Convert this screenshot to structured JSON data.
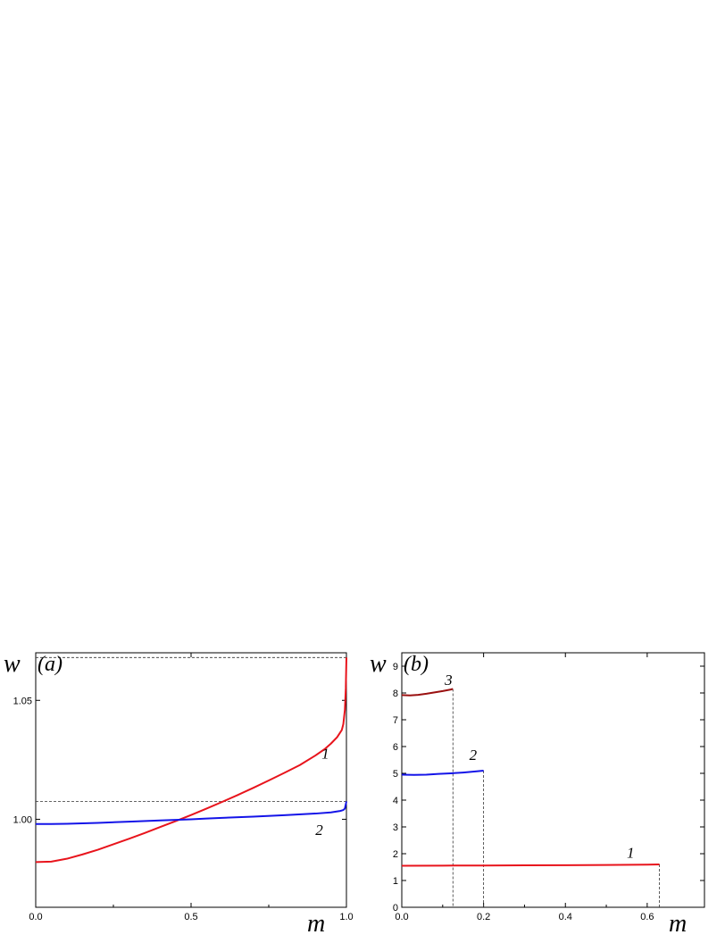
{
  "chart_data": [
    {
      "type": "line",
      "panel_label": "(a)",
      "ylabel": "w",
      "xlabel": "m",
      "xlim": [
        0.0,
        1.0
      ],
      "ylim": [
        0.963,
        1.07
      ],
      "xticks": [
        0.0,
        0.5,
        1.0
      ],
      "xtick_labels": [
        "0.0",
        "0.5",
        "1.0"
      ],
      "yticks": [
        1.0,
        1.05
      ],
      "ytick_labels": [
        "1.00",
        "1.05"
      ],
      "grid": false,
      "series": [
        {
          "name": "1",
          "color": "#e8141c",
          "x": [
            0.0,
            0.05,
            0.1,
            0.15,
            0.2,
            0.25,
            0.3,
            0.35,
            0.4,
            0.45,
            0.5,
            0.55,
            0.6,
            0.65,
            0.7,
            0.75,
            0.8,
            0.85,
            0.9,
            0.93,
            0.95,
            0.97,
            0.985,
            0.99,
            0.995,
            0.998,
            1.0
          ],
          "y": [
            0.982,
            0.9822,
            0.9834,
            0.9852,
            0.9872,
            0.9895,
            0.9918,
            0.9942,
            0.9967,
            0.9992,
            1.0018,
            1.0045,
            1.0073,
            1.0102,
            1.0132,
            1.0163,
            1.0195,
            1.0228,
            1.0268,
            1.0295,
            1.0318,
            1.0345,
            1.0375,
            1.04,
            1.046,
            1.055,
            1.068
          ]
        },
        {
          "name": "2",
          "color": "#1414e8",
          "x": [
            0.0,
            0.05,
            0.1,
            0.2,
            0.3,
            0.4,
            0.5,
            0.55,
            0.6,
            0.7,
            0.8,
            0.9,
            0.95,
            0.98,
            0.99,
            0.995,
            1.0
          ],
          "y": [
            0.998,
            0.998,
            0.9981,
            0.9985,
            0.999,
            0.9995,
            1.0,
            1.0003,
            1.0006,
            1.0011,
            1.0017,
            1.0024,
            1.0029,
            1.0035,
            1.0039,
            1.0045,
            1.0075
          ]
        }
      ],
      "reference_lines": [
        1.068,
        1.0075
      ],
      "curve_labels": [
        {
          "text": "1",
          "x": 0.92,
          "y": 1.0255
        },
        {
          "text": "2",
          "x": 0.9,
          "y": 0.9935
        }
      ]
    },
    {
      "type": "line",
      "panel_label": "(b)",
      "ylabel": "w",
      "xlabel": "m",
      "xlim": [
        0.0,
        0.74
      ],
      "ylim": [
        0.0,
        9.5
      ],
      "xticks": [
        0.0,
        0.2,
        0.4,
        0.6
      ],
      "xtick_labels": [
        "0.0",
        "0.2",
        "0.4",
        "0.6"
      ],
      "yticks": [
        0,
        1,
        2,
        3,
        4,
        5,
        6,
        7,
        8,
        9
      ],
      "ytick_labels": [
        "0",
        "1",
        "2",
        "3",
        "4",
        "5",
        "6",
        "7",
        "8",
        "9"
      ],
      "grid": false,
      "series": [
        {
          "name": "1",
          "color": "#e8141c",
          "x": [
            0.0,
            0.1,
            0.2,
            0.3,
            0.4,
            0.5,
            0.6,
            0.63
          ],
          "y": [
            1.55,
            1.555,
            1.56,
            1.565,
            1.57,
            1.58,
            1.59,
            1.6
          ]
        },
        {
          "name": "2",
          "color": "#1414e8",
          "x": [
            0.0,
            0.03,
            0.06,
            0.09,
            0.12,
            0.15,
            0.18,
            0.2
          ],
          "y": [
            4.95,
            4.94,
            4.95,
            4.98,
            5.0,
            5.03,
            5.07,
            5.1
          ]
        },
        {
          "name": "3",
          "color": "#9a1010",
          "x": [
            0.0,
            0.02,
            0.04,
            0.06,
            0.08,
            0.1,
            0.12,
            0.125
          ],
          "y": [
            7.92,
            7.91,
            7.93,
            7.97,
            8.02,
            8.07,
            8.13,
            8.15
          ]
        }
      ],
      "reference_lines_x": [
        {
          "x": 0.125,
          "y_top": 8.15
        },
        {
          "x": 0.2,
          "y_top": 5.1
        },
        {
          "x": 0.63,
          "y_top": 1.6
        }
      ],
      "curve_labels": [
        {
          "text": "1",
          "x": 0.55,
          "y": 1.85
        },
        {
          "text": "2",
          "x": 0.165,
          "y": 5.5
        },
        {
          "text": "3",
          "x": 0.105,
          "y": 8.3
        }
      ]
    }
  ]
}
